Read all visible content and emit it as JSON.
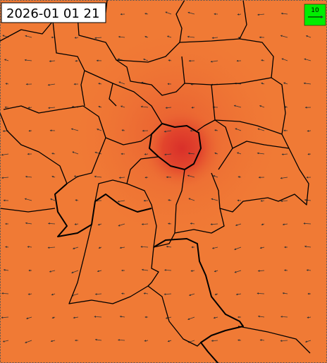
{
  "timestamp": "2026-01 01 21",
  "legend": {
    "label": "10"
  }
}
